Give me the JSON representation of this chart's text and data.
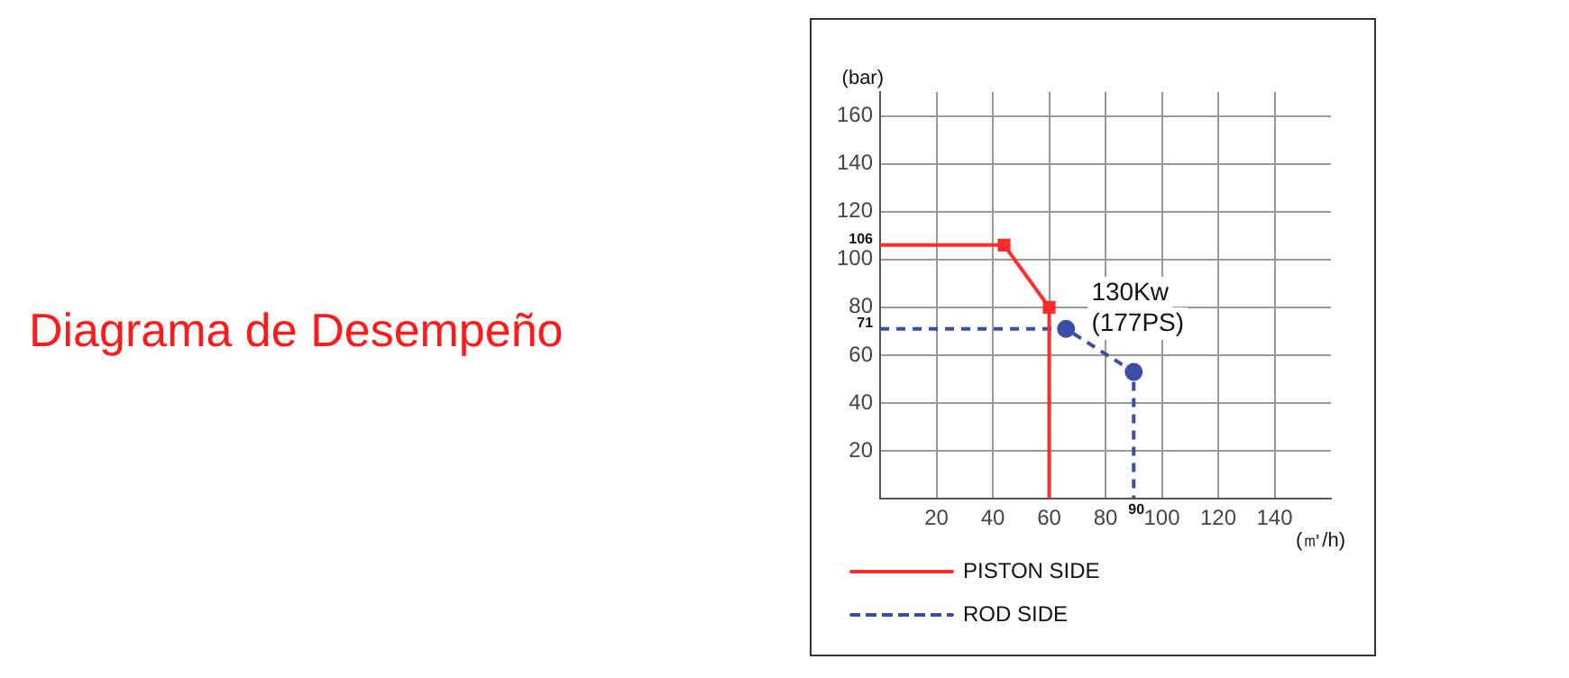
{
  "chart_data": {
    "type": "line",
    "title": "Diagrama de Desempeño",
    "xlabel": "(㎥/h)",
    "ylabel": "(bar)",
    "xlim": [
      0,
      160
    ],
    "ylim": [
      0,
      170
    ],
    "xticks": [
      20,
      40,
      60,
      80,
      100,
      120,
      140
    ],
    "yticks": [
      20,
      40,
      60,
      80,
      100,
      120,
      140,
      160
    ],
    "grid": true,
    "legend": "bottom",
    "annotations": [
      "130Kw (177PS)",
      "106",
      "71",
      "90"
    ],
    "series": [
      {
        "name": "PISTON SIDE",
        "color": "#ff2a2a",
        "x": [
          0,
          44,
          60,
          60
        ],
        "values": [
          106,
          106,
          80,
          0
        ],
        "marker": "square",
        "line_style": "solid"
      },
      {
        "name": "ROD SIDE",
        "color": "#3a4ea6",
        "x": [
          0,
          66,
          90,
          90
        ],
        "values": [
          71,
          71,
          53,
          0
        ],
        "marker": "circle",
        "line_style": "dashed"
      }
    ]
  }
}
